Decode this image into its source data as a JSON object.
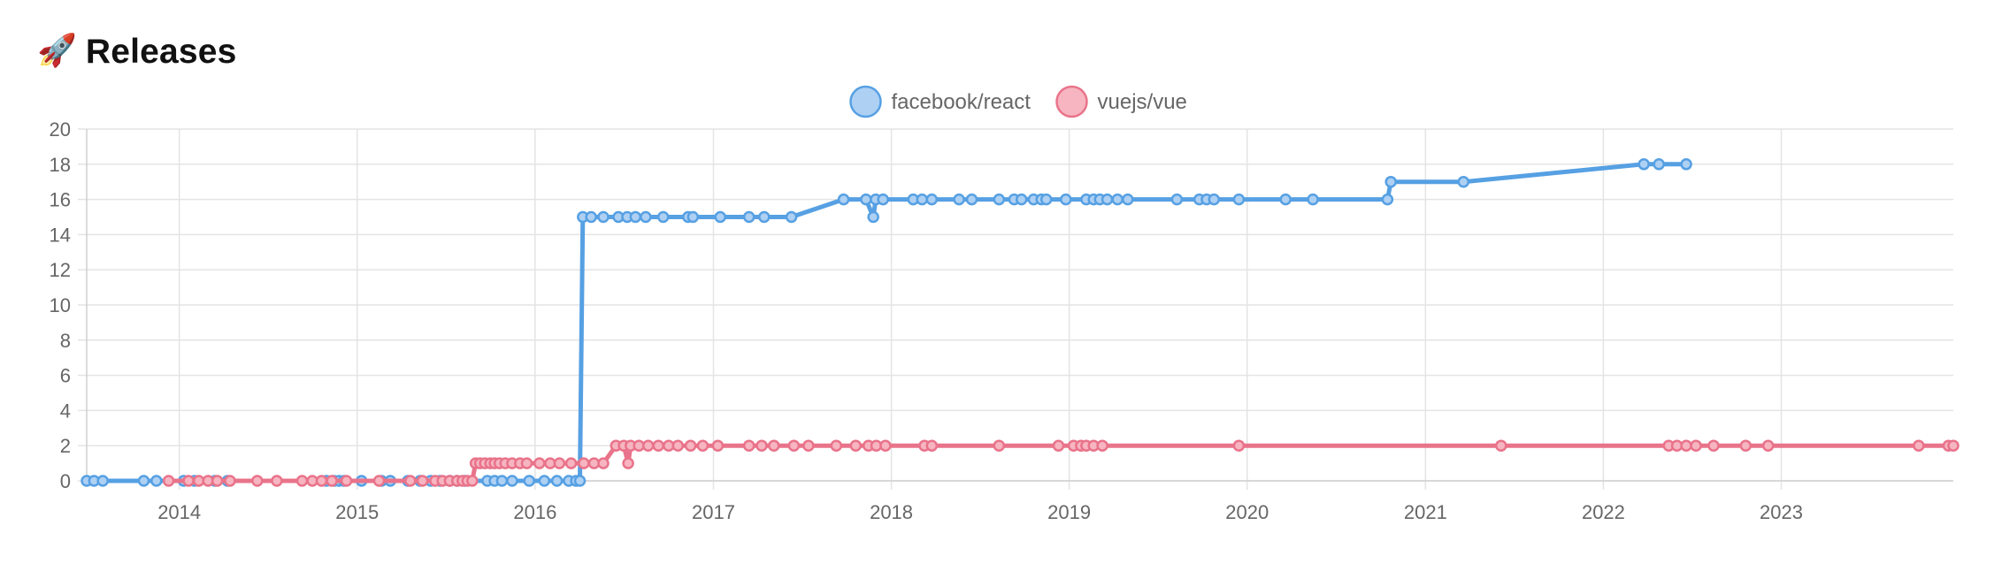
{
  "section": {
    "icon": "rocket-icon",
    "emoji": "🚀",
    "title": "Releases"
  },
  "chart_data": {
    "type": "line",
    "title": "",
    "xlabel": "",
    "ylabel": "",
    "x_axis": {
      "type": "date",
      "range": [
        "2013-06-25",
        "2023-12-20"
      ],
      "tick_labels": [
        "2014",
        "2015",
        "2016",
        "2017",
        "2018",
        "2019",
        "2020",
        "2021",
        "2022",
        "2023"
      ]
    },
    "y_axis": {
      "range": [
        0,
        20
      ],
      "tick_labels": [
        "0",
        "2",
        "4",
        "6",
        "8",
        "10",
        "12",
        "14",
        "16",
        "18",
        "20"
      ]
    },
    "grid": true,
    "legend": {
      "position": "top-center"
    },
    "series": [
      {
        "name": "facebook/react",
        "color": "#56a0e3",
        "fill": "#aed0f3",
        "points": [
          [
            "2013-06-25",
            0
          ],
          [
            "2013-07-10",
            0
          ],
          [
            "2013-07-28",
            0
          ],
          [
            "2013-10-20",
            0
          ],
          [
            "2013-11-15",
            0
          ],
          [
            "2014-01-10",
            0
          ],
          [
            "2014-02-01",
            0
          ],
          [
            "2014-03-15",
            0
          ],
          [
            "2014-04-10",
            0
          ],
          [
            "2014-10-30",
            0
          ],
          [
            "2014-11-15",
            0
          ],
          [
            "2014-11-25",
            0
          ],
          [
            "2014-12-05",
            0
          ],
          [
            "2015-01-10",
            0
          ],
          [
            "2015-02-20",
            0
          ],
          [
            "2015-03-10",
            0
          ],
          [
            "2015-04-15",
            0
          ],
          [
            "2015-05-10",
            0
          ],
          [
            "2015-06-01",
            0
          ],
          [
            "2015-06-20",
            0
          ],
          [
            "2015-07-10",
            0
          ],
          [
            "2015-07-25",
            0
          ],
          [
            "2015-08-10",
            0
          ],
          [
            "2015-09-25",
            0
          ],
          [
            "2015-10-10",
            0
          ],
          [
            "2015-10-25",
            0
          ],
          [
            "2015-11-15",
            0
          ],
          [
            "2015-12-20",
            0
          ],
          [
            "2016-01-20",
            0
          ],
          [
            "2016-02-15",
            0
          ],
          [
            "2016-03-10",
            0
          ],
          [
            "2016-03-25",
            0
          ],
          [
            "2016-04-02",
            0
          ],
          [
            "2016-04-08",
            15
          ],
          [
            "2016-04-25",
            15
          ],
          [
            "2016-05-20",
            15
          ],
          [
            "2016-06-20",
            15
          ],
          [
            "2016-07-08",
            15
          ],
          [
            "2016-07-25",
            15
          ],
          [
            "2016-08-15",
            15
          ],
          [
            "2016-09-20",
            15
          ],
          [
            "2016-11-10",
            15
          ],
          [
            "2016-11-20",
            15
          ],
          [
            "2017-01-15",
            15
          ],
          [
            "2017-03-15",
            15
          ],
          [
            "2017-04-15",
            15
          ],
          [
            "2017-06-10",
            15
          ],
          [
            "2017-09-25",
            16
          ],
          [
            "2017-11-10",
            16
          ],
          [
            "2017-11-25",
            15
          ],
          [
            "2017-11-30",
            16
          ],
          [
            "2017-12-15",
            16
          ],
          [
            "2018-02-15",
            16
          ],
          [
            "2018-03-05",
            16
          ],
          [
            "2018-03-25",
            16
          ],
          [
            "2018-05-20",
            16
          ],
          [
            "2018-06-15",
            16
          ],
          [
            "2018-08-10",
            16
          ],
          [
            "2018-09-10",
            16
          ],
          [
            "2018-09-25",
            16
          ],
          [
            "2018-10-20",
            16
          ],
          [
            "2018-11-05",
            16
          ],
          [
            "2018-11-15",
            16
          ],
          [
            "2018-12-25",
            16
          ],
          [
            "2019-02-05",
            16
          ],
          [
            "2019-02-20",
            16
          ],
          [
            "2019-03-05",
            16
          ],
          [
            "2019-03-20",
            16
          ],
          [
            "2019-04-10",
            16
          ],
          [
            "2019-05-01",
            16
          ],
          [
            "2019-08-10",
            16
          ],
          [
            "2019-09-25",
            16
          ],
          [
            "2019-10-10",
            16
          ],
          [
            "2019-10-25",
            16
          ],
          [
            "2019-12-15",
            16
          ],
          [
            "2020-03-20",
            16
          ],
          [
            "2020-05-15",
            16
          ],
          [
            "2020-10-15",
            16
          ],
          [
            "2020-10-22",
            17
          ],
          [
            "2021-03-20",
            17
          ],
          [
            "2022-03-25",
            18
          ],
          [
            "2022-04-25",
            18
          ],
          [
            "2022-06-20",
            18
          ]
        ]
      },
      {
        "name": "vuejs/vue",
        "color": "#e9738a",
        "fill": "#f6b5c1",
        "points": [
          [
            "2013-12-10",
            0
          ],
          [
            "2014-01-20",
            0
          ],
          [
            "2014-02-10",
            0
          ],
          [
            "2014-03-01",
            0
          ],
          [
            "2014-03-20",
            0
          ],
          [
            "2014-04-15",
            0
          ],
          [
            "2014-06-10",
            0
          ],
          [
            "2014-07-20",
            0
          ],
          [
            "2014-09-10",
            0
          ],
          [
            "2014-10-01",
            0
          ],
          [
            "2014-10-20",
            0
          ],
          [
            "2014-11-10",
            0
          ],
          [
            "2014-12-10",
            0
          ],
          [
            "2015-02-15",
            0
          ],
          [
            "2015-04-20",
            0
          ],
          [
            "2015-05-15",
            0
          ],
          [
            "2015-06-10",
            0
          ],
          [
            "2015-06-25",
            0
          ],
          [
            "2015-07-10",
            0
          ],
          [
            "2015-07-25",
            0
          ],
          [
            "2015-08-05",
            0
          ],
          [
            "2015-08-15",
            0
          ],
          [
            "2015-08-25",
            0
          ],
          [
            "2015-09-01",
            1
          ],
          [
            "2015-09-10",
            1
          ],
          [
            "2015-09-20",
            1
          ],
          [
            "2015-10-01",
            1
          ],
          [
            "2015-10-10",
            1
          ],
          [
            "2015-10-20",
            1
          ],
          [
            "2015-11-01",
            1
          ],
          [
            "2015-11-15",
            1
          ],
          [
            "2015-12-01",
            1
          ],
          [
            "2015-12-15",
            1
          ],
          [
            "2016-01-10",
            1
          ],
          [
            "2016-02-01",
            1
          ],
          [
            "2016-02-20",
            1
          ],
          [
            "2016-03-15",
            1
          ],
          [
            "2016-04-10",
            1
          ],
          [
            "2016-05-01",
            1
          ],
          [
            "2016-05-20",
            1
          ],
          [
            "2016-06-15",
            2
          ],
          [
            "2016-07-01",
            2
          ],
          [
            "2016-07-10",
            1
          ],
          [
            "2016-07-15",
            2
          ],
          [
            "2016-08-01",
            2
          ],
          [
            "2016-08-20",
            2
          ],
          [
            "2016-09-10",
            2
          ],
          [
            "2016-10-01",
            2
          ],
          [
            "2016-10-20",
            2
          ],
          [
            "2016-11-15",
            2
          ],
          [
            "2016-12-10",
            2
          ],
          [
            "2017-01-10",
            2
          ],
          [
            "2017-03-15",
            2
          ],
          [
            "2017-04-10",
            2
          ],
          [
            "2017-05-05",
            2
          ],
          [
            "2017-06-15",
            2
          ],
          [
            "2017-07-15",
            2
          ],
          [
            "2017-09-10",
            2
          ],
          [
            "2017-10-20",
            2
          ],
          [
            "2017-11-15",
            2
          ],
          [
            "2017-12-01",
            2
          ],
          [
            "2017-12-20",
            2
          ],
          [
            "2018-03-10",
            2
          ],
          [
            "2018-03-25",
            2
          ],
          [
            "2018-08-10",
            2
          ],
          [
            "2018-12-10",
            2
          ],
          [
            "2019-01-10",
            2
          ],
          [
            "2019-01-25",
            2
          ],
          [
            "2019-02-05",
            2
          ],
          [
            "2019-02-20",
            2
          ],
          [
            "2019-03-10",
            2
          ],
          [
            "2019-12-15",
            2
          ],
          [
            "2021-06-05",
            2
          ],
          [
            "2022-05-15",
            2
          ],
          [
            "2022-06-01",
            2
          ],
          [
            "2022-06-20",
            2
          ],
          [
            "2022-07-10",
            2
          ],
          [
            "2022-08-15",
            2
          ],
          [
            "2022-10-20",
            2
          ],
          [
            "2022-12-05",
            2
          ],
          [
            "2023-10-10",
            2
          ],
          [
            "2023-12-10",
            2
          ],
          [
            "2023-12-20",
            2
          ]
        ]
      }
    ]
  }
}
